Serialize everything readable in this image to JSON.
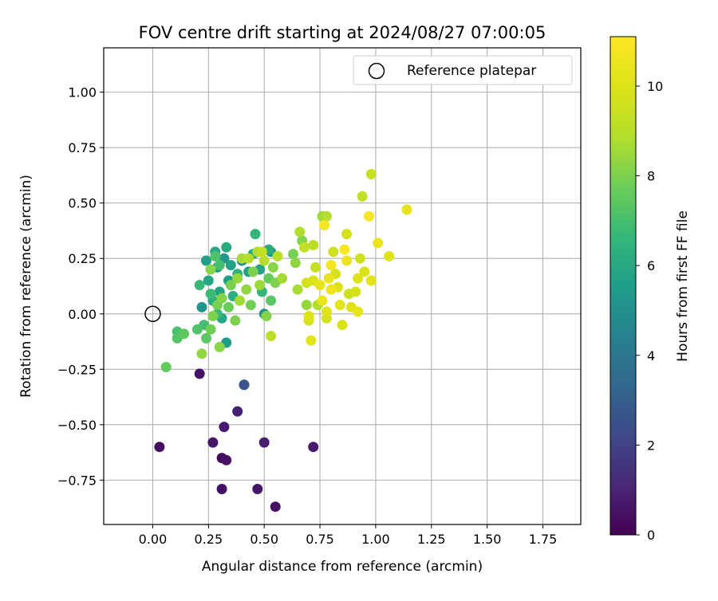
{
  "chart_data": {
    "type": "scatter",
    "title": "FOV centre drift starting at 2024/08/27 07:00:05",
    "xlabel": "Angular distance from reference (arcmin)",
    "ylabel": "Rotation from reference (arcmin)",
    "xlim": [
      -0.22,
      1.92
    ],
    "ylim": [
      -0.95,
      1.2
    ],
    "xticks": [
      0.0,
      0.25,
      0.5,
      0.75,
      1.0,
      1.25,
      1.5,
      1.75
    ],
    "xtick_labels": [
      "0.00",
      "0.25",
      "0.50",
      "0.75",
      "1.00",
      "1.25",
      "1.50",
      "1.75"
    ],
    "yticks": [
      -0.75,
      -0.5,
      -0.25,
      0.0,
      0.25,
      0.5,
      0.75,
      1.0
    ],
    "ytick_labels": [
      "−0.75",
      "−0.50",
      "−0.25",
      "0.00",
      "0.25",
      "0.50",
      "0.75",
      "1.00"
    ],
    "grid": true,
    "legend": {
      "placement": "top-right",
      "entries": [
        "Reference platepar"
      ]
    },
    "reference_point": {
      "x": 0.0,
      "y": 0.0,
      "label": "Reference platepar"
    },
    "colorbar": {
      "label": "Hours from first FF file",
      "colormap": "viridis",
      "range": [
        0,
        11.1
      ],
      "ticks": [
        0,
        2,
        4,
        6,
        8,
        10
      ],
      "tick_labels": [
        "0",
        "2",
        "4",
        "6",
        "8",
        "10"
      ]
    },
    "points": [
      {
        "x": 0.03,
        "y": -0.6,
        "h": 0.4
      },
      {
        "x": 0.21,
        "y": -0.27,
        "h": 0.5
      },
      {
        "x": 0.27,
        "y": -0.58,
        "h": 0.6
      },
      {
        "x": 0.31,
        "y": -0.65,
        "h": 0.3
      },
      {
        "x": 0.33,
        "y": -0.66,
        "h": 0.5
      },
      {
        "x": 0.31,
        "y": -0.79,
        "h": 0.4
      },
      {
        "x": 0.32,
        "y": -0.51,
        "h": 0.7
      },
      {
        "x": 0.38,
        "y": -0.44,
        "h": 0.9
      },
      {
        "x": 0.47,
        "y": -0.79,
        "h": 0.6
      },
      {
        "x": 0.55,
        "y": -0.87,
        "h": 0.5
      },
      {
        "x": 0.5,
        "y": -0.58,
        "h": 0.8
      },
      {
        "x": 0.72,
        "y": -0.6,
        "h": 0.7
      },
      {
        "x": 0.41,
        "y": -0.32,
        "h": 2.5
      },
      {
        "x": 0.41,
        "y": -0.32,
        "h": 2.7
      },
      {
        "x": 0.22,
        "y": 0.03,
        "h": 5.2
      },
      {
        "x": 0.24,
        "y": 0.24,
        "h": 5.6
      },
      {
        "x": 0.25,
        "y": 0.15,
        "h": 5.9
      },
      {
        "x": 0.28,
        "y": 0.28,
        "h": 6.0
      },
      {
        "x": 0.29,
        "y": 0.21,
        "h": 5.4
      },
      {
        "x": 0.3,
        "y": 0.1,
        "h": 5.8
      },
      {
        "x": 0.32,
        "y": 0.25,
        "h": 5.3
      },
      {
        "x": 0.33,
        "y": 0.3,
        "h": 6.1
      },
      {
        "x": 0.34,
        "y": 0.15,
        "h": 5.5
      },
      {
        "x": 0.35,
        "y": 0.22,
        "h": 5.7
      },
      {
        "x": 0.33,
        "y": -0.13,
        "h": 5.6
      },
      {
        "x": 0.31,
        "y": -0.02,
        "h": 5.9
      },
      {
        "x": 0.27,
        "y": 0.06,
        "h": 6.2
      },
      {
        "x": 0.36,
        "y": 0.08,
        "h": 6.3
      },
      {
        "x": 0.38,
        "y": 0.18,
        "h": 6.4
      },
      {
        "x": 0.4,
        "y": 0.24,
        "h": 5.0
      },
      {
        "x": 0.43,
        "y": 0.19,
        "h": 5.6
      },
      {
        "x": 0.45,
        "y": 0.27,
        "h": 6.0
      },
      {
        "x": 0.46,
        "y": 0.36,
        "h": 6.5
      },
      {
        "x": 0.48,
        "y": 0.2,
        "h": 5.8
      },
      {
        "x": 0.5,
        "y": 0.0,
        "h": 5.2
      },
      {
        "x": 0.52,
        "y": 0.29,
        "h": 6.1
      },
      {
        "x": 0.53,
        "y": 0.28,
        "h": 5.4
      },
      {
        "x": 0.49,
        "y": 0.1,
        "h": 6.6
      },
      {
        "x": 0.21,
        "y": 0.13,
        "h": 6.7
      },
      {
        "x": 0.26,
        "y": 0.09,
        "h": 6.8
      },
      {
        "x": 0.23,
        "y": -0.05,
        "h": 6.9
      },
      {
        "x": 0.29,
        "y": 0.0,
        "h": 6.7
      },
      {
        "x": 0.2,
        "y": -0.07,
        "h": 7.2
      },
      {
        "x": 0.24,
        "y": -0.11,
        "h": 7.4
      },
      {
        "x": 0.11,
        "y": -0.08,
        "h": 7.1
      },
      {
        "x": 0.11,
        "y": -0.11,
        "h": 7.3
      },
      {
        "x": 0.14,
        "y": -0.09,
        "h": 7.5
      },
      {
        "x": 0.06,
        "y": -0.24,
        "h": 7.6
      },
      {
        "x": 0.28,
        "y": 0.26,
        "h": 7.2
      },
      {
        "x": 0.3,
        "y": 0.22,
        "h": 7.0
      },
      {
        "x": 0.26,
        "y": 0.2,
        "h": 8.2
      },
      {
        "x": 0.22,
        "y": -0.18,
        "h": 8.3
      },
      {
        "x": 0.26,
        "y": -0.07,
        "h": 7.8
      },
      {
        "x": 0.27,
        "y": -0.01,
        "h": 8.0
      },
      {
        "x": 0.29,
        "y": 0.04,
        "h": 7.9
      },
      {
        "x": 0.31,
        "y": 0.07,
        "h": 8.1
      },
      {
        "x": 0.3,
        "y": -0.15,
        "h": 8.2
      },
      {
        "x": 0.34,
        "y": 0.03,
        "h": 7.7
      },
      {
        "x": 0.35,
        "y": 0.13,
        "h": 7.9
      },
      {
        "x": 0.37,
        "y": -0.03,
        "h": 8.0
      },
      {
        "x": 0.38,
        "y": 0.16,
        "h": 8.4
      },
      {
        "x": 0.39,
        "y": 0.06,
        "h": 8.6
      },
      {
        "x": 0.4,
        "y": 0.25,
        "h": 8.7
      },
      {
        "x": 0.42,
        "y": 0.11,
        "h": 8.3
      },
      {
        "x": 0.44,
        "y": 0.04,
        "h": 7.8
      },
      {
        "x": 0.45,
        "y": 0.19,
        "h": 8.0
      },
      {
        "x": 0.47,
        "y": 0.28,
        "h": 8.8
      },
      {
        "x": 0.48,
        "y": 0.13,
        "h": 8.5
      },
      {
        "x": 0.5,
        "y": 0.24,
        "h": 8.9
      },
      {
        "x": 0.51,
        "y": -0.01,
        "h": 8.1
      },
      {
        "x": 0.52,
        "y": 0.16,
        "h": 7.6
      },
      {
        "x": 0.53,
        "y": 0.06,
        "h": 7.4
      },
      {
        "x": 0.54,
        "y": 0.21,
        "h": 8.2
      },
      {
        "x": 0.55,
        "y": 0.14,
        "h": 8.0
      },
      {
        "x": 0.56,
        "y": 0.26,
        "h": 9.0
      },
      {
        "x": 0.58,
        "y": 0.16,
        "h": 8.6
      },
      {
        "x": 0.63,
        "y": 0.27,
        "h": 7.9
      },
      {
        "x": 0.64,
        "y": 0.23,
        "h": 8.3
      },
      {
        "x": 0.66,
        "y": 0.37,
        "h": 8.8
      },
      {
        "x": 0.67,
        "y": 0.33,
        "h": 8.1
      },
      {
        "x": 0.68,
        "y": 0.3,
        "h": 9.2
      },
      {
        "x": 0.69,
        "y": 0.04,
        "h": 8.4
      },
      {
        "x": 0.53,
        "y": -0.1,
        "h": 9.1
      },
      {
        "x": 0.49,
        "y": 0.28,
        "h": 9.3
      },
      {
        "x": 0.43,
        "y": 0.25,
        "h": 8.9
      },
      {
        "x": 0.65,
        "y": 0.11,
        "h": 8.7
      },
      {
        "x": 0.72,
        "y": 0.31,
        "h": 9.0
      },
      {
        "x": 0.73,
        "y": 0.21,
        "h": 9.4
      },
      {
        "x": 0.74,
        "y": 0.04,
        "h": 8.8
      },
      {
        "x": 0.76,
        "y": 0.44,
        "h": 8.6
      },
      {
        "x": 0.78,
        "y": 0.44,
        "h": 8.9
      },
      {
        "x": 0.69,
        "y": 0.14,
        "h": 9.6
      },
      {
        "x": 0.7,
        "y": -0.03,
        "h": 9.8
      },
      {
        "x": 0.7,
        "y": -0.01,
        "h": 10.0
      },
      {
        "x": 0.71,
        "y": -0.12,
        "h": 10.2
      },
      {
        "x": 0.72,
        "y": 0.15,
        "h": 9.9
      },
      {
        "x": 0.75,
        "y": 0.13,
        "h": 10.3
      },
      {
        "x": 0.76,
        "y": 0.06,
        "h": 10.5
      },
      {
        "x": 0.77,
        "y": 0.4,
        "h": 10.8
      },
      {
        "x": 0.78,
        "y": -0.02,
        "h": 9.7
      },
      {
        "x": 0.78,
        "y": 0.01,
        "h": 10.1
      },
      {
        "x": 0.79,
        "y": 0.16,
        "h": 10.4
      },
      {
        "x": 0.8,
        "y": 0.11,
        "h": 10.6
      },
      {
        "x": 0.8,
        "y": 0.22,
        "h": 10.7
      },
      {
        "x": 0.81,
        "y": 0.28,
        "h": 9.6
      },
      {
        "x": 0.82,
        "y": 0.18,
        "h": 9.8
      },
      {
        "x": 0.83,
        "y": 0.12,
        "h": 10.0
      },
      {
        "x": 0.84,
        "y": 0.04,
        "h": 10.2
      },
      {
        "x": 0.85,
        "y": -0.05,
        "h": 9.9
      },
      {
        "x": 0.86,
        "y": 0.29,
        "h": 10.9
      },
      {
        "x": 0.87,
        "y": 0.24,
        "h": 10.5
      },
      {
        "x": 0.87,
        "y": 0.36,
        "h": 9.7
      },
      {
        "x": 0.88,
        "y": 0.09,
        "h": 9.5
      },
      {
        "x": 0.89,
        "y": 0.03,
        "h": 10.1
      },
      {
        "x": 0.91,
        "y": 0.1,
        "h": 9.8
      },
      {
        "x": 0.92,
        "y": 0.01,
        "h": 10.3
      },
      {
        "x": 0.92,
        "y": 0.16,
        "h": 10.0
      },
      {
        "x": 0.93,
        "y": 0.25,
        "h": 9.6
      },
      {
        "x": 0.94,
        "y": 0.53,
        "h": 9.2
      },
      {
        "x": 0.95,
        "y": 0.19,
        "h": 9.9
      },
      {
        "x": 0.97,
        "y": 0.44,
        "h": 10.9
      },
      {
        "x": 0.98,
        "y": 0.15,
        "h": 10.2
      },
      {
        "x": 0.98,
        "y": 0.63,
        "h": 9.4
      },
      {
        "x": 1.01,
        "y": 0.32,
        "h": 10.4
      },
      {
        "x": 1.06,
        "y": 0.26,
        "h": 10.1
      },
      {
        "x": 1.14,
        "y": 0.47,
        "h": 10.3
      }
    ]
  }
}
